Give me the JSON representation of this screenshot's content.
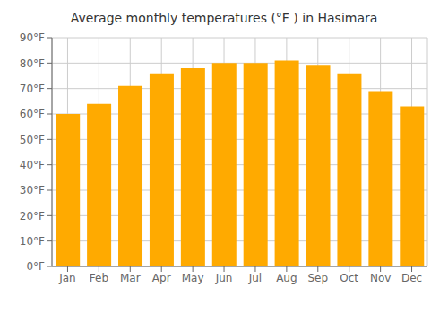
{
  "chart_data": {
    "type": "bar",
    "title": "Average monthly temperatures (°F ) in Hāsimāra",
    "categories": [
      "Jan",
      "Feb",
      "Mar",
      "Apr",
      "May",
      "Jun",
      "Jul",
      "Aug",
      "Sep",
      "Oct",
      "Nov",
      "Dec"
    ],
    "values": [
      60,
      64,
      71,
      76,
      78,
      80,
      80,
      81,
      79,
      76,
      69,
      63
    ],
    "color": "#FFAA00",
    "ylim": [
      0,
      90
    ],
    "yticks": [
      {
        "value": 0,
        "label": "0°F"
      },
      {
        "value": 10,
        "label": "10°F"
      },
      {
        "value": 20,
        "label": "20°F"
      },
      {
        "value": 30,
        "label": "30°F"
      },
      {
        "value": 40,
        "label": "40°F"
      },
      {
        "value": 50,
        "label": "50°F"
      },
      {
        "value": 60,
        "label": "60°F"
      },
      {
        "value": 70,
        "label": "70°F"
      },
      {
        "value": 80,
        "label": "80°F"
      },
      {
        "value": 90,
        "label": "90°F"
      }
    ],
    "grid": true
  }
}
